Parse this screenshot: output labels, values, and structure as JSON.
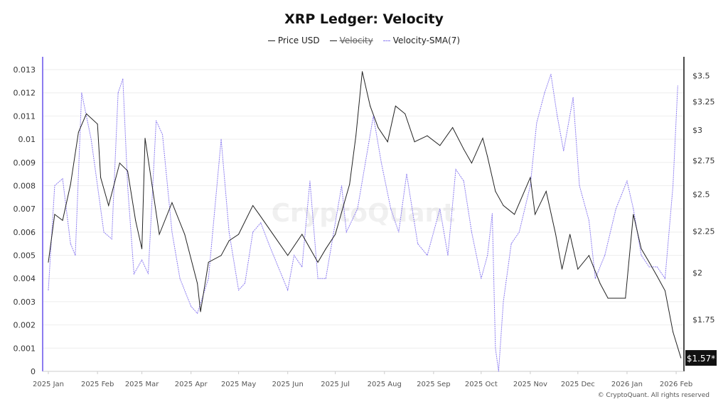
{
  "chart_data": {
    "type": "line",
    "title": "XRP Ledger: Velocity",
    "legend": [
      "Price USD",
      "Velocity",
      "Velocity-SMA(7)"
    ],
    "legend_hidden": [
      "Velocity"
    ],
    "legend_placement": "top-center",
    "x_ticks": [
      "2025 Jan",
      "2025 Feb",
      "2025 Mar",
      "2025 Apr",
      "2025 May",
      "2025 Jun",
      "2025 Jul",
      "2025 Aug",
      "2025 Sep",
      "2025 Oct",
      "2025 Nov",
      "2025 Dec",
      "2026 Jan",
      "2026 Feb"
    ],
    "y_left": {
      "range": [
        0,
        0.013
      ],
      "ticks": [
        "0",
        "0.001",
        "0.002",
        "0.003",
        "0.004",
        "0.005",
        "0.006",
        "0.007",
        "0.008",
        "0.009",
        "0.01",
        "0.011",
        "0.012",
        "0.013"
      ]
    },
    "y_right": {
      "scale": "log",
      "range": [
        1.5,
        3.6
      ],
      "ticks": [
        "$1.75",
        "$2",
        "$2.25",
        "$2.5",
        "$2.75",
        "$3",
        "$3.25",
        "$3.5"
      ]
    },
    "last_price_label": "$1.57*",
    "grid": "horizontal",
    "colors": {
      "price": "#222222",
      "sma": "#8c7cf0",
      "axis_left": "#8c7cf0",
      "axis_right": "#111111"
    },
    "series": [
      {
        "name": "Price USD",
        "axis": "right",
        "points": [
          [
            "2025-01-01",
            2.06
          ],
          [
            "2025-01-05",
            2.36
          ],
          [
            "2025-01-10",
            2.32
          ],
          [
            "2025-01-15",
            2.57
          ],
          [
            "2025-01-20",
            2.98
          ],
          [
            "2025-01-25",
            3.14
          ],
          [
            "2025-02-01",
            3.05
          ],
          [
            "2025-02-03",
            2.62
          ],
          [
            "2025-02-08",
            2.42
          ],
          [
            "2025-02-15",
            2.73
          ],
          [
            "2025-02-20",
            2.67
          ],
          [
            "2025-02-25",
            2.32
          ],
          [
            "2025-03-01",
            2.14
          ],
          [
            "2025-03-03",
            2.93
          ],
          [
            "2025-03-08",
            2.52
          ],
          [
            "2025-03-12",
            2.23
          ],
          [
            "2025-03-20",
            2.44
          ],
          [
            "2025-03-28",
            2.23
          ],
          [
            "2025-04-05",
            1.94
          ],
          [
            "2025-04-07",
            1.79
          ],
          [
            "2025-04-12",
            2.06
          ],
          [
            "2025-04-20",
            2.1
          ],
          [
            "2025-04-25",
            2.19
          ],
          [
            "2025-05-01",
            2.23
          ],
          [
            "2025-05-10",
            2.42
          ],
          [
            "2025-05-14",
            2.36
          ],
          [
            "2025-05-20",
            2.27
          ],
          [
            "2025-06-01",
            2.1
          ],
          [
            "2025-06-10",
            2.23
          ],
          [
            "2025-06-20",
            2.06
          ],
          [
            "2025-06-25",
            2.14
          ],
          [
            "2025-07-01",
            2.23
          ],
          [
            "2025-07-10",
            2.57
          ],
          [
            "2025-07-14",
            2.95
          ],
          [
            "2025-07-18",
            3.54
          ],
          [
            "2025-07-23",
            3.21
          ],
          [
            "2025-07-28",
            3.02
          ],
          [
            "2025-08-03",
            2.9
          ],
          [
            "2025-08-08",
            3.21
          ],
          [
            "2025-08-14",
            3.14
          ],
          [
            "2025-08-20",
            2.9
          ],
          [
            "2025-08-28",
            2.95
          ],
          [
            "2025-09-05",
            2.87
          ],
          [
            "2025-09-13",
            3.02
          ],
          [
            "2025-09-20",
            2.84
          ],
          [
            "2025-09-25",
            2.73
          ],
          [
            "2025-10-02",
            2.93
          ],
          [
            "2025-10-05",
            2.78
          ],
          [
            "2025-10-10",
            2.52
          ],
          [
            "2025-10-15",
            2.42
          ],
          [
            "2025-10-22",
            2.36
          ],
          [
            "2025-11-01",
            2.62
          ],
          [
            "2025-11-04",
            2.36
          ],
          [
            "2025-11-11",
            2.52
          ],
          [
            "2025-11-17",
            2.23
          ],
          [
            "2025-11-21",
            2.02
          ],
          [
            "2025-11-26",
            2.23
          ],
          [
            "2025-12-01",
            2.02
          ],
          [
            "2025-12-08",
            2.1
          ],
          [
            "2025-12-15",
            1.94
          ],
          [
            "2025-12-20",
            1.86
          ],
          [
            "2025-12-31",
            1.86
          ],
          [
            "2026-01-05",
            2.36
          ],
          [
            "2026-01-10",
            2.14
          ],
          [
            "2026-01-15",
            2.06
          ],
          [
            "2026-01-20",
            1.98
          ],
          [
            "2026-01-25",
            1.9
          ],
          [
            "2026-01-30",
            1.69
          ],
          [
            "2026-02-04",
            1.57
          ]
        ]
      },
      {
        "name": "Velocity-SMA(7)",
        "axis": "left",
        "points": [
          [
            "2025-01-01",
            0.0035
          ],
          [
            "2025-01-05",
            0.008
          ],
          [
            "2025-01-10",
            0.0083
          ],
          [
            "2025-01-15",
            0.0055
          ],
          [
            "2025-01-18",
            0.005
          ],
          [
            "2025-01-22",
            0.012
          ],
          [
            "2025-01-28",
            0.01
          ],
          [
            "2025-02-05",
            0.006
          ],
          [
            "2025-02-10",
            0.0057
          ],
          [
            "2025-02-14",
            0.012
          ],
          [
            "2025-02-17",
            0.0126
          ],
          [
            "2025-02-20",
            0.008
          ],
          [
            "2025-02-24",
            0.0042
          ],
          [
            "2025-03-01",
            0.0048
          ],
          [
            "2025-03-05",
            0.0042
          ],
          [
            "2025-03-10",
            0.0108
          ],
          [
            "2025-03-14",
            0.0102
          ],
          [
            "2025-03-20",
            0.006
          ],
          [
            "2025-03-25",
            0.004
          ],
          [
            "2025-04-01",
            0.0028
          ],
          [
            "2025-04-05",
            0.0025
          ],
          [
            "2025-04-12",
            0.004
          ],
          [
            "2025-04-20",
            0.01
          ],
          [
            "2025-04-25",
            0.006
          ],
          [
            "2025-05-01",
            0.0035
          ],
          [
            "2025-05-05",
            0.0038
          ],
          [
            "2025-05-10",
            0.006
          ],
          [
            "2025-05-15",
            0.0064
          ],
          [
            "2025-05-20",
            0.0055
          ],
          [
            "2025-06-01",
            0.0035
          ],
          [
            "2025-06-05",
            0.005
          ],
          [
            "2025-06-10",
            0.0045
          ],
          [
            "2025-06-15",
            0.0082
          ],
          [
            "2025-06-20",
            0.004
          ],
          [
            "2025-06-25",
            0.004
          ],
          [
            "2025-07-05",
            0.008
          ],
          [
            "2025-07-08",
            0.006
          ],
          [
            "2025-07-15",
            0.007
          ],
          [
            "2025-07-20",
            0.009
          ],
          [
            "2025-07-25",
            0.011
          ],
          [
            "2025-07-30",
            0.009
          ],
          [
            "2025-08-05",
            0.007
          ],
          [
            "2025-08-10",
            0.006
          ],
          [
            "2025-08-15",
            0.0085
          ],
          [
            "2025-08-22",
            0.0055
          ],
          [
            "2025-08-28",
            0.005
          ],
          [
            "2025-09-05",
            0.007
          ],
          [
            "2025-09-10",
            0.005
          ],
          [
            "2025-09-15",
            0.0087
          ],
          [
            "2025-09-20",
            0.0082
          ],
          [
            "2025-09-25",
            0.006
          ],
          [
            "2025-10-01",
            0.004
          ],
          [
            "2025-10-05",
            0.005
          ],
          [
            "2025-10-08",
            0.0068
          ],
          [
            "2025-10-10",
            0.001
          ],
          [
            "2025-10-12",
            0.0
          ],
          [
            "2025-10-15",
            0.003
          ],
          [
            "2025-10-20",
            0.0055
          ],
          [
            "2025-10-25",
            0.006
          ],
          [
            "2025-11-01",
            0.008
          ],
          [
            "2025-11-05",
            0.0107
          ],
          [
            "2025-11-10",
            0.012
          ],
          [
            "2025-11-14",
            0.0128
          ],
          [
            "2025-11-18",
            0.011
          ],
          [
            "2025-11-22",
            0.0095
          ],
          [
            "2025-11-28",
            0.0118
          ],
          [
            "2025-12-02",
            0.008
          ],
          [
            "2025-12-08",
            0.0065
          ],
          [
            "2025-12-12",
            0.004
          ],
          [
            "2025-12-18",
            0.005
          ],
          [
            "2025-12-25",
            0.007
          ],
          [
            "2026-01-01",
            0.0082
          ],
          [
            "2026-01-05",
            0.007
          ],
          [
            "2026-01-10",
            0.005
          ],
          [
            "2026-01-15",
            0.0045
          ],
          [
            "2026-01-20",
            0.0045
          ],
          [
            "2026-01-25",
            0.004
          ],
          [
            "2026-01-30",
            0.008
          ],
          [
            "2026-02-02",
            0.0123
          ]
        ]
      }
    ]
  },
  "watermark": "CryptoQuant",
  "copyright": "© CryptoQuant. All rights reserved"
}
